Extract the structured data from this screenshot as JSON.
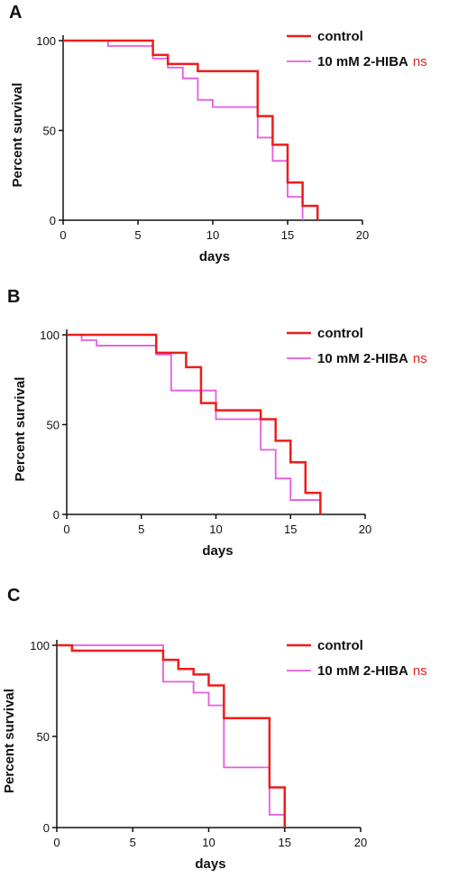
{
  "colors": {
    "control": "#ee1c1c",
    "treated": "#e85be0",
    "axis": "#111111",
    "ns": "#e02020"
  },
  "chart_data": [
    {
      "type": "line",
      "step": true,
      "panel": "A",
      "xlabel": "days",
      "ylabel": "Percent survival",
      "xlim": [
        0,
        20
      ],
      "ylim": [
        0,
        100
      ],
      "xticks": [
        0,
        5,
        10,
        15,
        20
      ],
      "yticks": [
        0,
        50,
        100
      ],
      "grid": false,
      "legend_position": "top-right",
      "annotation": "ns",
      "series": [
        {
          "name": "control",
          "color": "#ee1c1c",
          "x": [
            0,
            6,
            7,
            9,
            13,
            14,
            15,
            16,
            17
          ],
          "y": [
            100,
            92,
            87,
            83,
            58,
            42,
            21,
            8,
            0
          ]
        },
        {
          "name": "10 mM 2-HIBA",
          "color": "#e85be0",
          "x": [
            0,
            3,
            6,
            7,
            8,
            9,
            10,
            13,
            14,
            15,
            16
          ],
          "y": [
            100,
            97,
            90,
            85,
            79,
            67,
            63,
            46,
            33,
            13,
            0
          ]
        }
      ]
    },
    {
      "type": "line",
      "step": true,
      "panel": "B",
      "xlabel": "days",
      "ylabel": "Percent survival",
      "xlim": [
        0,
        20
      ],
      "ylim": [
        0,
        100
      ],
      "xticks": [
        0,
        5,
        10,
        15,
        20
      ],
      "yticks": [
        0,
        50,
        100
      ],
      "grid": false,
      "legend_position": "top-right",
      "annotation": "ns",
      "series": [
        {
          "name": "control",
          "color": "#ee1c1c",
          "x": [
            0,
            6,
            8,
            9,
            10,
            13,
            14,
            15,
            16,
            17
          ],
          "y": [
            100,
            90,
            82,
            62,
            58,
            53,
            41,
            29,
            12,
            0
          ]
        },
        {
          "name": "10 mM 2-HIBA",
          "color": "#e85be0",
          "x": [
            0,
            1,
            2,
            6,
            7,
            9,
            10,
            13,
            14,
            15,
            17
          ],
          "y": [
            100,
            97,
            94,
            89,
            69,
            69,
            53,
            36,
            20,
            8,
            0
          ]
        }
      ]
    },
    {
      "type": "line",
      "step": true,
      "panel": "C",
      "xlabel": "days",
      "ylabel": "Percent survival",
      "xlim": [
        0,
        20
      ],
      "ylim": [
        0,
        100
      ],
      "xticks": [
        0,
        5,
        10,
        15,
        20
      ],
      "yticks": [
        0,
        50,
        100
      ],
      "grid": false,
      "legend_position": "top-right",
      "annotation": "ns",
      "series": [
        {
          "name": "control",
          "color": "#ee1c1c",
          "x": [
            0,
            1,
            7,
            8,
            9,
            10,
            11,
            14,
            15
          ],
          "y": [
            100,
            97,
            92,
            87,
            84,
            78,
            60,
            22,
            0
          ]
        },
        {
          "name": "10 mM 2-HIBA",
          "color": "#e85be0",
          "x": [
            0,
            7,
            9,
            10,
            11,
            14,
            15
          ],
          "y": [
            100,
            80,
            74,
            67,
            33,
            7,
            0
          ]
        }
      ]
    }
  ]
}
